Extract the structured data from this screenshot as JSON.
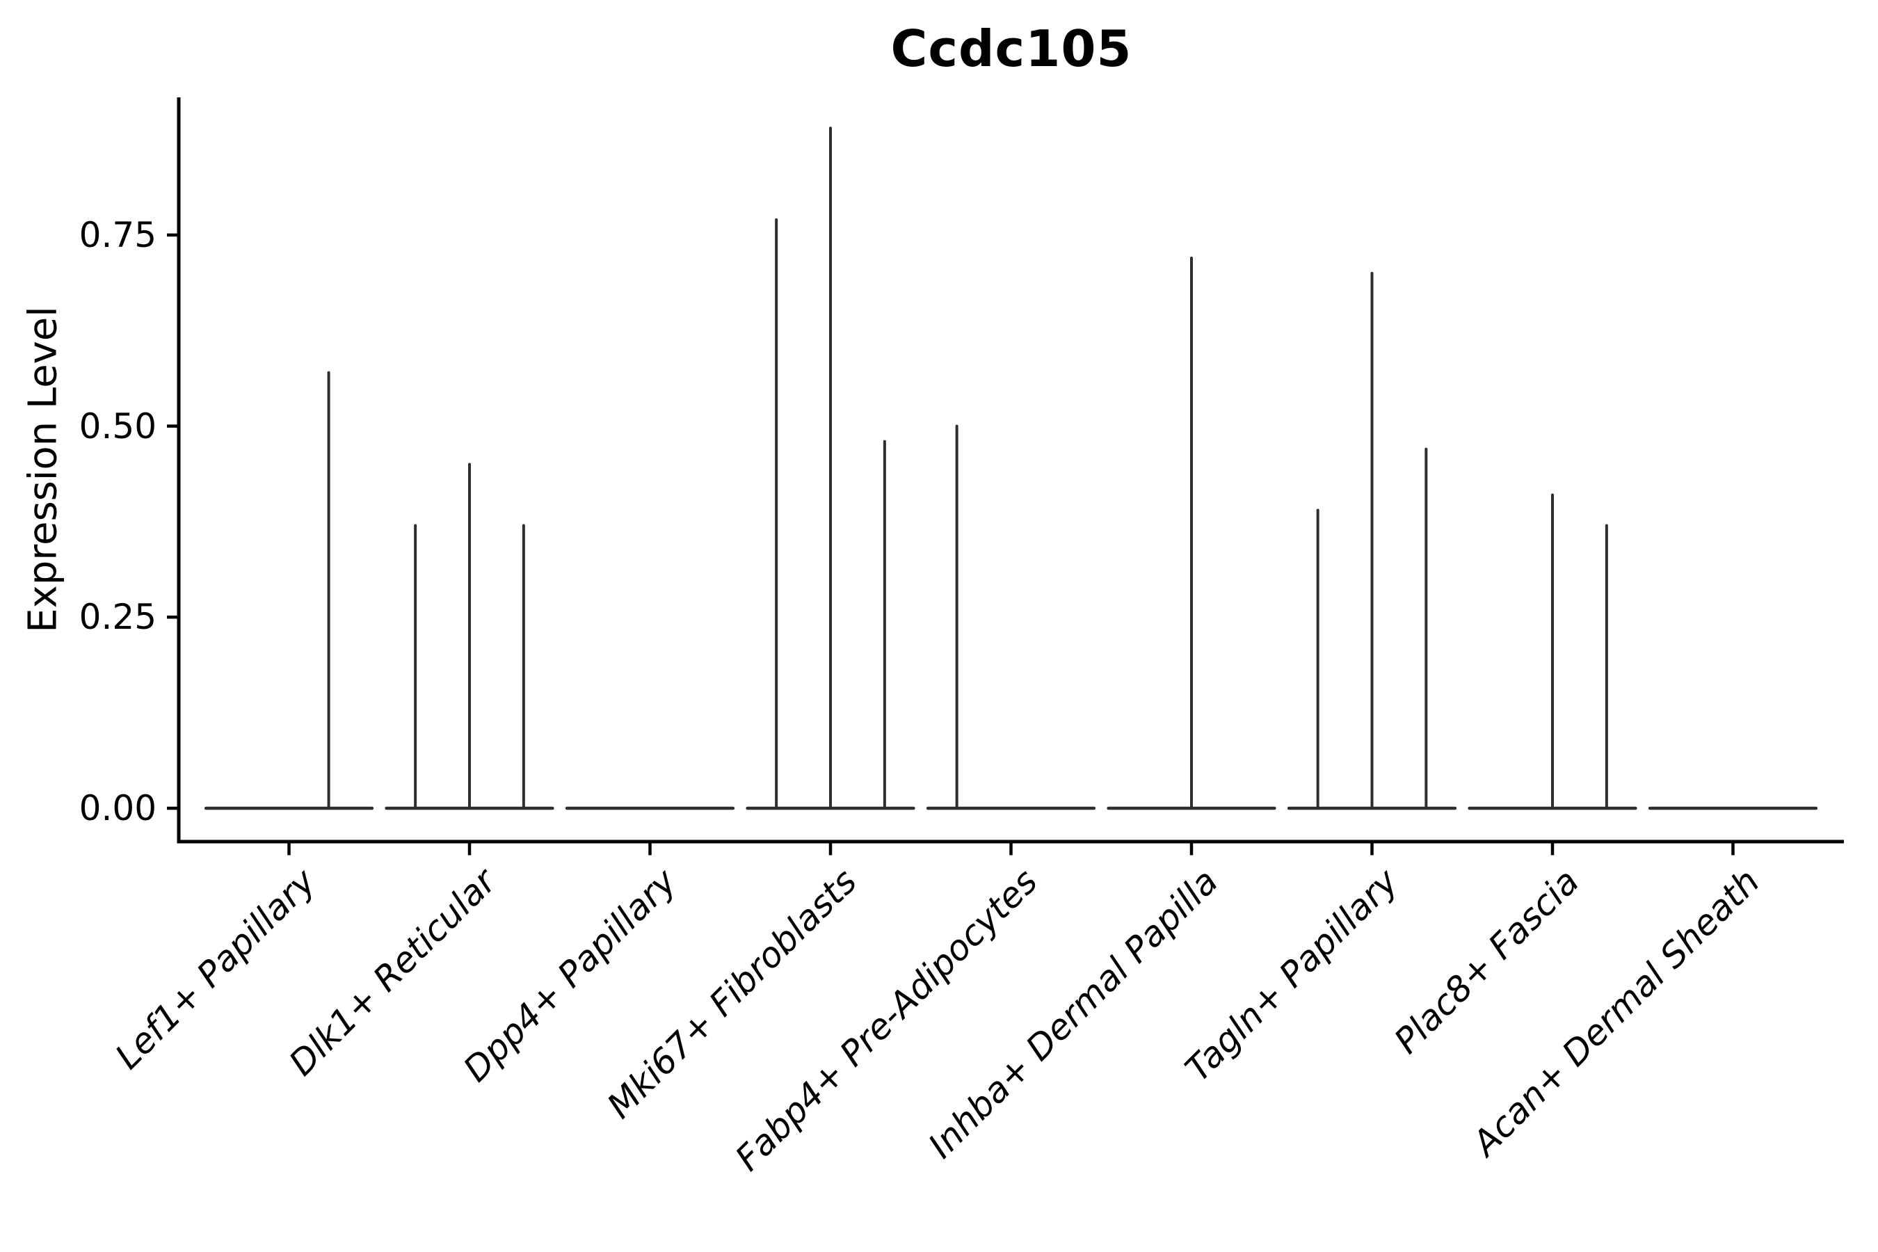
{
  "figure": {
    "background": "#ffffff"
  },
  "chart_data": {
    "type": "violin",
    "title": "Ccdc105",
    "xlabel": "",
    "ylabel": "Expression Level",
    "categories": [
      "Lef1+ Papillary",
      "Dlk1+ Reticular",
      "Dpp4+ Papillary",
      "Mki67+ Fibroblasts",
      "Fabp4+ Pre-Adipocytes",
      "Inhba+ Dermal Papilla",
      "Tagln+ Papillary",
      "Plac8+ Fascia",
      "Acan+ Dermal Sheath"
    ],
    "series": [
      {
        "category": "Lef1+ Papillary",
        "spikes": [
          {
            "offset": 0.22,
            "max": 0.57
          }
        ]
      },
      {
        "category": "Dlk1+ Reticular",
        "spikes": [
          {
            "offset": -0.3,
            "max": 0.37
          },
          {
            "offset": 0.0,
            "max": 0.45
          },
          {
            "offset": 0.3,
            "max": 0.37
          }
        ]
      },
      {
        "category": "Dpp4+ Papillary",
        "spikes": []
      },
      {
        "category": "Mki67+ Fibroblasts",
        "spikes": [
          {
            "offset": -0.3,
            "max": 0.77
          },
          {
            "offset": 0.0,
            "max": 0.89
          },
          {
            "offset": 0.3,
            "max": 0.48
          }
        ]
      },
      {
        "category": "Fabp4+ Pre-Adipocytes",
        "spikes": [
          {
            "offset": -0.3,
            "max": 0.5
          }
        ]
      },
      {
        "category": "Inhba+ Dermal Papilla",
        "spikes": [
          {
            "offset": 0.0,
            "max": 0.72
          }
        ]
      },
      {
        "category": "Tagln+ Papillary",
        "spikes": [
          {
            "offset": -0.3,
            "max": 0.39
          },
          {
            "offset": 0.0,
            "max": 0.7
          },
          {
            "offset": 0.3,
            "max": 0.47
          }
        ]
      },
      {
        "category": "Plac8+ Fascia",
        "spikes": [
          {
            "offset": 0.0,
            "max": 0.41
          },
          {
            "offset": 0.3,
            "max": 0.37
          }
        ]
      },
      {
        "category": "Acan+ Dermal Sheath",
        "spikes": []
      }
    ],
    "baseline_value": 0.0,
    "violin_halfwidth": 0.46,
    "yticks": [
      0.0,
      0.25,
      0.5,
      0.75
    ],
    "ytick_labels": [
      "0.00",
      "0.25",
      "0.50",
      "0.75"
    ],
    "ylim": [
      -0.044,
      0.93
    ],
    "grid": false,
    "legend": null,
    "colors": {
      "violin_line": "#2e2e2e",
      "axis": "#000000",
      "text": "#000000",
      "background": "#ffffff"
    }
  }
}
